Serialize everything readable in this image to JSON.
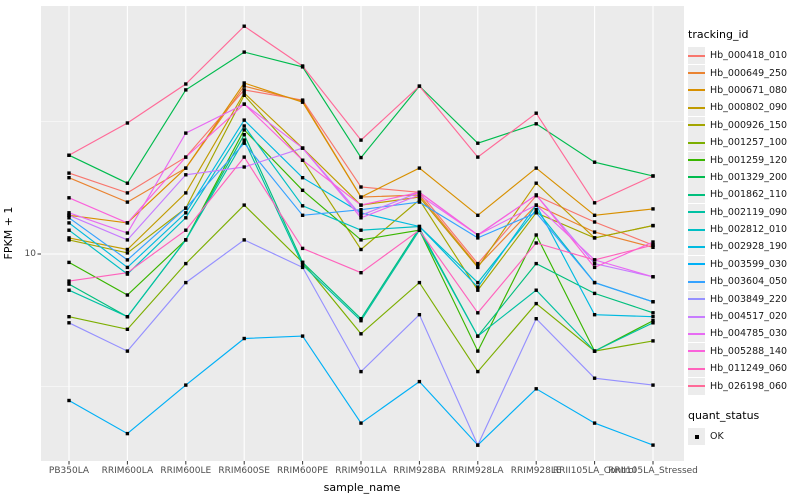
{
  "figure": {
    "y_axis_title": "FPKM + 1",
    "x_axis_title": "sample_name",
    "y_tick_label": "10"
  },
  "legend": {
    "tracking_title": "tracking_id",
    "quant_title": "quant_status",
    "quant_items": [
      {
        "label": "OK",
        "marker": "black-filled-square"
      }
    ]
  },
  "colors": {
    "panel_bg": "#EBEBEB",
    "gridline": "#FFFFFF",
    "tick_text": "#4D4D4D",
    "axis_title_text": "#000000",
    "point_marker": "#000000",
    "legend_key_bg": "#ECECEC"
  },
  "chart_data": {
    "type": "line",
    "title": "",
    "xlabel": "sample_name",
    "ylabel": "FPKM + 1",
    "y_scale": "log10",
    "y_tick_values": [
      10
    ],
    "ylim_approx": [
      1.6,
      90
    ],
    "grid": "white major/minor gridlines on gray panel",
    "legend_position": "right",
    "point_marker": "filled black square (quant_status = OK) at every data point",
    "categories": [
      "PB350LA",
      "RRIM600LA",
      "RRIM600LE",
      "RRIM600SE",
      "RRIM600PE",
      "RRIM901LA",
      "RRIM928BA",
      "RRIM928LA",
      "RRIM928LE",
      "RRII105LA_Control",
      "RRII105LA_Stressed"
    ],
    "series": [
      {
        "name": "Hb_000418_010",
        "color": "#F8766D",
        "values": [
          20.2,
          17.0,
          23.2,
          41.6,
          38.1,
          17.9,
          17.1,
          9.2,
          16.6,
          13.2,
          10.8
        ]
      },
      {
        "name": "Hb_000649_250",
        "color": "#EA8331",
        "values": [
          19.4,
          15.7,
          21.1,
          43.0,
          37.8,
          16.4,
          16.7,
          9.0,
          15.3,
          12.1,
          10.6
        ]
      },
      {
        "name": "Hb_000671_080",
        "color": "#D89000",
        "values": [
          14.0,
          13.1,
          21.1,
          44.2,
          37.4,
          16.4,
          21.1,
          14.0,
          21.1,
          14.0,
          14.8
        ]
      },
      {
        "name": "Hb_000802_090",
        "color": "#C09B00",
        "values": [
          11.5,
          10.4,
          17.0,
          40.5,
          25.1,
          15.3,
          16.4,
          8.9,
          18.5,
          11.5,
          12.8
        ]
      },
      {
        "name": "Hb_000926_150",
        "color": "#A3A500",
        "values": [
          11.3,
          10.1,
          14.9,
          39.7,
          22.6,
          10.4,
          16.0,
          7.3,
          14.3,
          11.5,
          12.8
        ]
      },
      {
        "name": "Hb_001257_100",
        "color": "#7CAE00",
        "values": [
          5.8,
          5.2,
          9.2,
          15.3,
          9.3,
          5.0,
          7.8,
          3.6,
          6.5,
          4.3,
          4.7
        ]
      },
      {
        "name": "Hb_001259_120",
        "color": "#39B600",
        "values": [
          9.3,
          7.0,
          11.3,
          29.4,
          17.4,
          11.3,
          12.3,
          4.3,
          11.8,
          4.3,
          5.6
        ]
      },
      {
        "name": "Hb_001329_200",
        "color": "#00BB4E",
        "values": [
          23.6,
          18.5,
          41.6,
          57.8,
          50.8,
          23.1,
          43.0,
          26.2,
          31.0,
          22.2,
          19.7
        ]
      },
      {
        "name": "Hb_001862_110",
        "color": "#00BF7D",
        "values": [
          7.7,
          5.8,
          11.3,
          28.2,
          9.3,
          5.7,
          12.5,
          4.9,
          9.2,
          7.1,
          6.0
        ]
      },
      {
        "name": "Hb_002119_090",
        "color": "#00C1A3",
        "values": [
          7.3,
          5.8,
          11.3,
          26.9,
          9.1,
          5.6,
          12.3,
          4.9,
          7.3,
          4.3,
          5.5
        ]
      },
      {
        "name": "Hb_002812_010",
        "color": "#00BFC4",
        "values": [
          12.3,
          8.4,
          13.7,
          30.4,
          15.2,
          12.3,
          12.7,
          7.8,
          14.7,
          7.8,
          6.6
        ]
      },
      {
        "name": "Hb_002928_190",
        "color": "#00BAE0",
        "values": [
          13.1,
          8.9,
          14.3,
          32.0,
          19.4,
          14.3,
          12.7,
          7.5,
          15.3,
          5.9,
          5.8
        ]
      },
      {
        "name": "Hb_003599_030",
        "color": "#00B0F6",
        "values": [
          2.8,
          2.1,
          3.2,
          4.8,
          4.9,
          2.3,
          3.3,
          1.9,
          3.1,
          2.3,
          1.9
        ]
      },
      {
        "name": "Hb_003604_050",
        "color": "#35A2FF",
        "values": [
          13.7,
          9.5,
          14.9,
          26.2,
          14.0,
          14.7,
          15.7,
          11.5,
          14.3,
          7.8,
          6.6
        ]
      },
      {
        "name": "Hb_003849_220",
        "color": "#9590FF",
        "values": [
          5.5,
          4.3,
          7.8,
          11.3,
          8.9,
          3.6,
          5.9,
          1.9,
          5.7,
          3.4,
          3.2
        ]
      },
      {
        "name": "Hb_004517_020",
        "color": "#C77CFF",
        "values": [
          14.0,
          11.3,
          19.9,
          21.3,
          25.1,
          14.0,
          17.1,
          11.8,
          16.7,
          9.2,
          8.2
        ]
      },
      {
        "name": "Hb_004785_030",
        "color": "#E76BF3",
        "values": [
          14.3,
          12.0,
          28.6,
          36.8,
          25.1,
          13.7,
          16.7,
          11.8,
          15.3,
          9.5,
          8.2
        ]
      },
      {
        "name": "Hb_005288_140",
        "color": "#FA62DB",
        "values": [
          16.3,
          13.1,
          23.2,
          36.8,
          22.6,
          15.3,
          17.1,
          11.8,
          16.7,
          8.9,
          11.1
        ]
      },
      {
        "name": "Hb_011249_060",
        "color": "#FF62BC",
        "values": [
          7.9,
          8.5,
          12.3,
          23.2,
          10.5,
          8.5,
          12.3,
          6.0,
          11.0,
          9.5,
          10.8
        ]
      },
      {
        "name": "Hb_026198_060",
        "color": "#FF6A98",
        "values": [
          23.6,
          31.2,
          43.8,
          72.4,
          51.2,
          26.9,
          43.0,
          23.2,
          34.0,
          15.6,
          19.7
        ]
      }
    ]
  }
}
